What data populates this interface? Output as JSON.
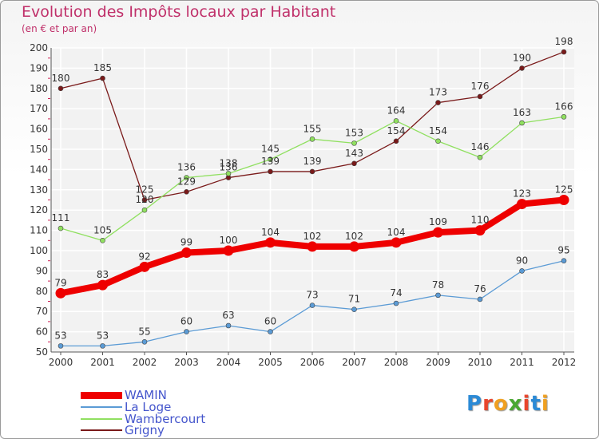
{
  "header": {
    "title": "Evolution des Impôts locaux par Habitant",
    "subtitle": "(en € et par an)"
  },
  "logo": {
    "text": "Proxiti",
    "letter_colors": [
      "#2b8ad6",
      "#e8452b",
      "#f0a020",
      "#4aa832",
      "#e8452b",
      "#2b8ad6",
      "#f0a020"
    ]
  },
  "chart_data": {
    "type": "line",
    "title": "Evolution des Impôts locaux par Habitant",
    "subtitle": "(en € et par an)",
    "x": [
      "2000",
      "2001",
      "2002",
      "2003",
      "2004",
      "2005",
      "2006",
      "2007",
      "2008",
      "2009",
      "2010",
      "2011",
      "2012"
    ],
    "yticks": [
      "50",
      "60",
      "70",
      "80",
      "90",
      "100",
      "110",
      "120",
      "130",
      "140",
      "150",
      "160",
      "170",
      "180",
      "190",
      "200"
    ],
    "ylim": [
      50,
      200
    ],
    "grid": true,
    "legend_position": "bottom-left",
    "series": [
      {
        "name": "WAMIN",
        "color": "#ee0000",
        "emphasis": true,
        "values": [
          79,
          83,
          92,
          99,
          100,
          104,
          102,
          102,
          104,
          109,
          110,
          123,
          125
        ]
      },
      {
        "name": "La Loge",
        "color": "#5b9bd5",
        "values": [
          53,
          53,
          55,
          60,
          63,
          60,
          73,
          71,
          74,
          78,
          76,
          90,
          95
        ]
      },
      {
        "name": "Wambercourt",
        "color": "#90e060",
        "values": [
          111,
          105,
          120,
          136,
          138,
          145,
          155,
          153,
          164,
          154,
          146,
          163,
          166
        ]
      },
      {
        "name": "Grigny",
        "color": "#7a1a1a",
        "values": [
          180,
          185,
          125,
          129,
          136,
          139,
          139,
          143,
          154,
          173,
          176,
          190,
          198
        ]
      }
    ]
  }
}
